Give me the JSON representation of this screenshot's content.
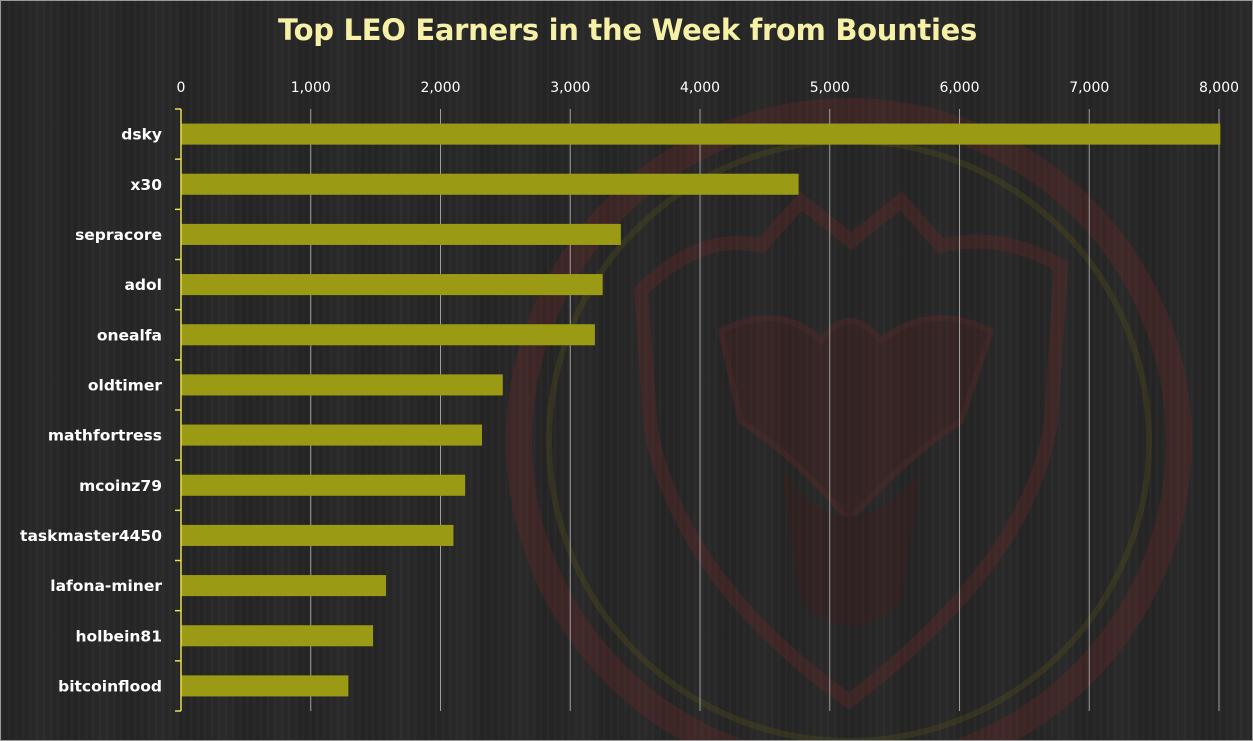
{
  "chart_data": {
    "type": "bar",
    "orientation": "horizontal",
    "title": "Top LEO Earners in the Week from Bounties",
    "xlabel": "",
    "ylabel": "",
    "xlim": [
      0,
      8000
    ],
    "x_ticks": [
      0,
      1000,
      2000,
      3000,
      4000,
      5000,
      6000,
      7000,
      8000
    ],
    "x_tick_labels": [
      "0",
      "1,000",
      "2,000",
      "3,000",
      "4,000",
      "5,000",
      "6,000",
      "7,000",
      "8,000"
    ],
    "x_axis_position": "top",
    "grid": true,
    "legend": "none",
    "categories": [
      "dsky",
      "x30",
      "sepracore",
      "adol",
      "onealfa",
      "oldtimer",
      "mathfortress",
      "mcoinz79",
      "taskmaster4450",
      "lafona-miner",
      "holbein81",
      "bitcoinflood"
    ],
    "values": [
      8010,
      4760,
      3390,
      3250,
      3190,
      2480,
      2320,
      2190,
      2100,
      1580,
      1480,
      1290
    ]
  },
  "colors": {
    "bar": "#9a9a14",
    "title": "#f7f1a8",
    "axis": "#e8e050",
    "gridline": "#9e9e9e",
    "background": "#262626",
    "watermark": "#7a2a26"
  },
  "watermark_icon": "lion-shield-icon"
}
